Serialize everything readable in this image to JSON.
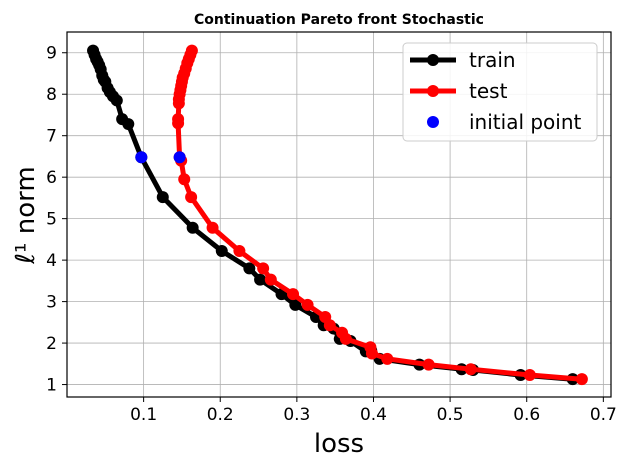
{
  "chart_data": {
    "type": "line",
    "title": "Continuation Pareto front Stochastic",
    "xlabel": "loss",
    "ylabel": "ℓ¹ norm",
    "xlim": [
      0.0,
      0.71
    ],
    "ylim": [
      0.7,
      9.5
    ],
    "xticks": [
      0.1,
      0.2,
      0.3,
      0.4,
      0.5,
      0.6,
      0.7
    ],
    "xtick_labels": [
      "0.1",
      "0.2",
      "0.3",
      "0.4",
      "0.5",
      "0.6",
      "0.7"
    ],
    "yticks": [
      1,
      2,
      3,
      4,
      5,
      6,
      7,
      8,
      9
    ],
    "ytick_labels": [
      "1",
      "2",
      "3",
      "4",
      "5",
      "6",
      "7",
      "8",
      "9"
    ],
    "grid": true,
    "legend_position": "top-right",
    "series": [
      {
        "name": "train",
        "color": "#000000",
        "x": [
          0.034,
          0.036,
          0.038,
          0.04,
          0.042,
          0.044,
          0.046,
          0.048,
          0.05,
          0.053,
          0.056,
          0.06,
          0.065,
          0.072,
          0.08,
          0.097,
          0.125,
          0.164,
          0.202,
          0.238,
          0.252,
          0.28,
          0.298,
          0.325,
          0.335,
          0.348,
          0.356,
          0.37,
          0.39,
          0.397,
          0.408,
          0.46,
          0.515,
          0.53,
          0.592,
          0.66
        ],
        "y": [
          9.05,
          8.95,
          8.85,
          8.78,
          8.7,
          8.6,
          8.45,
          8.35,
          8.3,
          8.15,
          8.05,
          7.95,
          7.85,
          7.4,
          7.28,
          6.48,
          5.52,
          4.78,
          4.22,
          3.8,
          3.53,
          3.18,
          2.92,
          2.63,
          2.43,
          2.35,
          2.1,
          2.05,
          1.8,
          1.82,
          1.62,
          1.48,
          1.37,
          1.35,
          1.23,
          1.13
        ]
      },
      {
        "name": "test",
        "color": "#ff0000",
        "x": [
          0.163,
          0.161,
          0.159,
          0.157,
          0.155,
          0.153,
          0.151,
          0.15,
          0.149,
          0.148,
          0.147,
          0.146,
          0.146,
          0.145,
          0.145,
          0.147,
          0.149,
          0.153,
          0.162,
          0.19,
          0.225,
          0.256,
          0.266,
          0.295,
          0.314,
          0.337,
          0.343,
          0.359,
          0.364,
          0.396,
          0.398,
          0.418,
          0.472,
          0.527,
          0.604,
          0.672
        ],
        "y": [
          9.05,
          8.95,
          8.85,
          8.75,
          8.62,
          8.5,
          8.4,
          8.3,
          8.2,
          8.1,
          8.0,
          7.88,
          7.78,
          7.4,
          7.3,
          6.48,
          6.4,
          5.95,
          5.52,
          4.78,
          4.22,
          3.8,
          3.53,
          3.18,
          2.92,
          2.63,
          2.43,
          2.25,
          2.1,
          1.9,
          1.75,
          1.62,
          1.48,
          1.37,
          1.23,
          1.13
        ]
      }
    ],
    "initial_points": {
      "name": "initial point",
      "color": "#0000ff",
      "points": [
        [
          0.097,
          6.48
        ],
        [
          0.147,
          6.48
        ]
      ]
    }
  }
}
